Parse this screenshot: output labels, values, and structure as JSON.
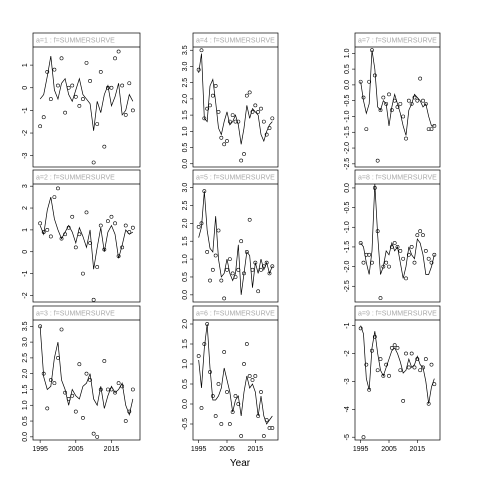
{
  "x_label": "Year",
  "chart_data": [
    {
      "type": "scatter-line",
      "strip": "a=1 : f=SUMMERSURVE",
      "x": [
        1995,
        1996,
        1997,
        1998,
        1999,
        2000,
        2001,
        2002,
        2003,
        2004,
        2005,
        2006,
        2007,
        2008,
        2009,
        2010,
        2011,
        2012,
        2013,
        2014,
        2015,
        2016,
        2017,
        2018,
        2019,
        2020,
        2021
      ],
      "xlim": [
        1993,
        2023
      ],
      "ylim": [
        -3.5,
        1.8
      ],
      "yticks": [
        -3,
        -2,
        -1,
        0,
        1
      ],
      "series": [
        {
          "color": "#000000",
          "marker": "circle",
          "values": [
            -1.7,
            -1.3,
            0.7,
            -0.5,
            0.8,
            0.1,
            1.3,
            -1.1,
            0.0,
            0.1,
            -0.4,
            -0.8,
            -0.5,
            1.1,
            0.3,
            -3.3,
            -1.6,
            0.7,
            -2.6,
            0.0,
            0.0,
            1.3,
            1.6,
            0.1,
            -1.2,
            0.2,
            -1.0
          ]
        },
        {
          "color": "#000000",
          "marker": "line",
          "values": [
            -0.5,
            -0.3,
            0.5,
            1.4,
            -0.1,
            -0.5,
            0.2,
            0.4,
            -0.3,
            -0.6,
            -0.1,
            0.4,
            -0.3,
            -0.5,
            -0.7,
            -1.9,
            -0.6,
            -1.1,
            -0.3,
            0.1,
            -0.8,
            -0.4,
            0.2,
            -1.2,
            -1.0,
            -0.3,
            -0.6
          ]
        }
      ]
    },
    {
      "type": "scatter-line",
      "strip": "a=2 : f=SUMMERSURVE",
      "x": [
        1995,
        1996,
        1997,
        1998,
        1999,
        2000,
        2001,
        2002,
        2003,
        2004,
        2005,
        2006,
        2007,
        2008,
        2009,
        2010,
        2011,
        2012,
        2013,
        2014,
        2015,
        2016,
        2017,
        2018,
        2019,
        2020,
        2021
      ],
      "xlim": [
        1993,
        2023
      ],
      "ylim": [
        -2.3,
        3.1
      ],
      "yticks": [
        -2,
        -1,
        0,
        1,
        2,
        3
      ],
      "series": [
        {
          "color": "#000000",
          "marker": "circle",
          "values": [
            1.3,
            0.9,
            1.0,
            0.7,
            2.5,
            2.9,
            0.6,
            0.8,
            1.1,
            1.6,
            0.2,
            0.8,
            -1.0,
            1.8,
            0.4,
            -2.2,
            -0.7,
            1.2,
            0.1,
            1.4,
            1.6,
            1.3,
            -0.2,
            0.2,
            1.2,
            0.9,
            1.1
          ]
        },
        {
          "color": "#000000",
          "marker": "line",
          "values": [
            1.2,
            0.8,
            1.9,
            2.5,
            1.5,
            1.0,
            0.6,
            0.9,
            1.2,
            0.9,
            0.4,
            1.1,
            0.7,
            0.2,
            1.0,
            -0.8,
            0.2,
            1.1,
            0.0,
            0.9,
            1.2,
            0.8,
            -0.3,
            0.3,
            1.0,
            0.8,
            0.9
          ]
        }
      ]
    },
    {
      "type": "scatter-line",
      "strip": "a=3 : f=SUMMERSURVE",
      "x": [
        1995,
        1996,
        1997,
        1998,
        1999,
        2000,
        2001,
        2002,
        2003,
        2004,
        2005,
        2006,
        2007,
        2008,
        2009,
        2010,
        2011,
        2012,
        2013,
        2014,
        2015,
        2016,
        2017,
        2018,
        2019,
        2020,
        2021
      ],
      "xlim": [
        1993,
        2023
      ],
      "xticks": [
        1995,
        2005,
        2015
      ],
      "ylim": [
        -0.1,
        3.7
      ],
      "yticks": [
        {
          "value": 0,
          "label": "0.0"
        },
        0.5,
        {
          "value": 1,
          "label": "1.0"
        },
        1.5,
        {
          "value": 2,
          "label": "2.0"
        },
        2.5,
        {
          "value": 3,
          "label": "3.0"
        },
        3.5
      ],
      "series": [
        {
          "color": "#000000",
          "marker": "circle",
          "values": [
            3.5,
            2.0,
            0.9,
            1.8,
            1.7,
            2.5,
            3.4,
            1.4,
            1.2,
            1.3,
            0.8,
            2.3,
            0.6,
            2.0,
            1.8,
            0.1,
            0.0,
            1.5,
            2.4,
            1.5,
            1.5,
            1.4,
            1.7,
            1.6,
            0.5,
            0.8,
            1.5
          ]
        },
        {
          "color": "#000000",
          "marker": "line",
          "values": [
            3.5,
            1.9,
            1.5,
            1.6,
            2.5,
            3.0,
            1.8,
            1.5,
            1.0,
            1.5,
            1.3,
            1.2,
            1.6,
            1.7,
            2.0,
            1.2,
            1.0,
            1.6,
            0.9,
            1.3,
            1.6,
            1.4,
            1.5,
            1.7,
            1.0,
            0.7,
            1.2
          ]
        }
      ]
    },
    {
      "type": "scatter-line",
      "strip": "a=4 : f=SUMMERSURVE",
      "x": [
        1995,
        1996,
        1997,
        1998,
        1999,
        2000,
        2001,
        2002,
        2003,
        2004,
        2005,
        2006,
        2007,
        2008,
        2009,
        2010,
        2011,
        2012,
        2013,
        2014,
        2015,
        2016,
        2017,
        2018,
        2019,
        2020,
        2021
      ],
      "xlim": [
        1993,
        2023
      ],
      "ylim": [
        -0.1,
        3.6
      ],
      "yticks": [
        {
          "value": 0,
          "label": "0.0"
        },
        0.5,
        {
          "value": 1,
          "label": "1.0"
        },
        1.5,
        {
          "value": 2,
          "label": "2.0"
        },
        2.5,
        {
          "value": 3,
          "label": "3.0"
        },
        3.5
      ],
      "series": [
        {
          "color": "#000000",
          "marker": "circle",
          "values": [
            2.9,
            3.5,
            1.4,
            1.7,
            1.8,
            2.1,
            2.4,
            1.6,
            0.8,
            0.6,
            0.7,
            1.3,
            1.5,
            1.3,
            1.3,
            0.1,
            0.3,
            2.1,
            2.2,
            1.6,
            1.8,
            1.6,
            1.7,
            1.3,
            0.9,
            1.1,
            1.4
          ]
        },
        {
          "color": "#000000",
          "marker": "line",
          "values": [
            2.8,
            3.4,
            1.4,
            1.3,
            2.4,
            2.6,
            1.9,
            1.1,
            0.9,
            1.3,
            1.6,
            1.2,
            1.3,
            1.5,
            1.2,
            0.6,
            1.1,
            1.8,
            1.4,
            1.7,
            1.6,
            1.5,
            0.9,
            0.7,
            1.0,
            1.2,
            1.3
          ]
        }
      ]
    },
    {
      "type": "scatter-line",
      "strip": "a=5 : f=SUMMERSURVE",
      "x": [
        1995,
        1996,
        1997,
        1998,
        1999,
        2000,
        2001,
        2002,
        2003,
        2004,
        2005,
        2006,
        2007,
        2008,
        2009,
        2010,
        2011,
        2012,
        2013,
        2014,
        2015,
        2016,
        2017,
        2018,
        2019,
        2020,
        2021
      ],
      "xlim": [
        1993,
        2023
      ],
      "ylim": [
        -0.2,
        3.1
      ],
      "yticks": [
        {
          "value": 0,
          "label": "0.0"
        },
        0.5,
        {
          "value": 1,
          "label": "1.0"
        },
        1.5,
        {
          "value": 2,
          "label": "2.0"
        },
        2.5,
        {
          "value": 3,
          "label": "3.0"
        }
      ],
      "series": [
        {
          "color": "#000000",
          "marker": "circle",
          "values": [
            1.9,
            2.0,
            2.9,
            1.2,
            0.4,
            0.7,
            1.1,
            1.8,
            0.4,
            -0.1,
            0.7,
            1.0,
            0.6,
            0.5,
            0.7,
            1.5,
            0.6,
            1.2,
            2.1,
            0.7,
            0.9,
            0.1,
            0.7,
            0.8,
            0.9,
            0.6,
            0.8
          ]
        },
        {
          "color": "#000000",
          "marker": "line",
          "values": [
            1.6,
            1.9,
            2.9,
            1.8,
            1.3,
            1.2,
            2.2,
            1.0,
            0.5,
            0.6,
            1.0,
            0.6,
            0.4,
            0.6,
            1.4,
            0.0,
            0.6,
            1.2,
            1.1,
            0.2,
            0.9,
            0.6,
            1.0,
            0.7,
            0.9,
            0.6,
            0.8
          ]
        }
      ]
    },
    {
      "type": "scatter-line",
      "strip": "a=6 : f=SUMMERSURVE",
      "x": [
        1995,
        1996,
        1997,
        1998,
        1999,
        2000,
        2001,
        2002,
        2003,
        2004,
        2005,
        2006,
        2007,
        2008,
        2009,
        2010,
        2011,
        2012,
        2013,
        2014,
        2015,
        2016,
        2017,
        2018,
        2019,
        2020,
        2021
      ],
      "xlim": [
        1993,
        2023
      ],
      "xticks": [
        1995,
        2005,
        2015
      ],
      "ylim": [
        -0.9,
        2.1
      ],
      "yticks": [
        -0.5,
        {
          "value": 0,
          "label": "0.0"
        },
        0.5,
        {
          "value": 1,
          "label": "1.0"
        },
        1.5,
        {
          "value": 2,
          "label": "2.0"
        }
      ],
      "series": [
        {
          "color": "#000000",
          "marker": "circle",
          "values": [
            1.2,
            -0.1,
            1.5,
            2.0,
            0.8,
            0.2,
            -0.3,
            0.5,
            -0.5,
            1.3,
            0.3,
            -0.5,
            -0.2,
            0.2,
            0.0,
            -0.8,
            1.0,
            1.5,
            0.7,
            0.6,
            0.7,
            -0.3,
            0.3,
            -0.8,
            -0.4,
            -0.6,
            -0.6
          ]
        },
        {
          "color": "#000000",
          "marker": "line",
          "values": [
            1.1,
            0.4,
            1.4,
            2.0,
            0.9,
            0.1,
            0.1,
            0.2,
            0.4,
            0.9,
            0.6,
            0.3,
            -0.2,
            0.1,
            0.2,
            -0.3,
            0.3,
            0.7,
            0.4,
            0.5,
            0.3,
            -0.3,
            0.2,
            -0.3,
            -0.5,
            -0.4,
            -0.3
          ]
        }
      ]
    },
    {
      "type": "scatter-line",
      "strip": "a=7 : f=SUMMERSURVE",
      "x": [
        1995,
        1996,
        1997,
        1998,
        1999,
        2000,
        2001,
        2002,
        2003,
        2004,
        2005,
        2006,
        2007,
        2008,
        2009,
        2010,
        2011,
        2012,
        2013,
        2014,
        2015,
        2016,
        2017,
        2018,
        2019,
        2020,
        2021
      ],
      "xlim": [
        1993,
        2023
      ],
      "ylim": [
        -2.6,
        1.2
      ],
      "yticks": [
        -2.5,
        {
          "value": -2,
          "label": "-2.0"
        },
        -1.5,
        {
          "value": -1,
          "label": "-1.0"
        },
        -0.5,
        {
          "value": 0,
          "label": "0.0"
        },
        0.5,
        {
          "value": 1,
          "label": "1.0"
        }
      ],
      "series": [
        {
          "color": "#000000",
          "marker": "circle",
          "values": [
            0.1,
            -0.4,
            -1.4,
            0.1,
            1.1,
            0.3,
            -2.4,
            -0.8,
            -0.4,
            -0.6,
            -0.3,
            -0.8,
            -0.5,
            -0.7,
            -0.6,
            -1.0,
            -1.7,
            -0.5,
            -0.6,
            -0.4,
            -0.5,
            0.2,
            -0.5,
            -0.6,
            -1.4,
            -1.4,
            -1.3
          ]
        },
        {
          "color": "#000000",
          "marker": "line",
          "values": [
            0.1,
            -0.5,
            -0.9,
            -0.6,
            1.1,
            0.5,
            -0.7,
            -0.8,
            -0.5,
            -0.6,
            -1.3,
            -0.7,
            -0.3,
            -0.6,
            -0.9,
            -1.3,
            -1.6,
            -0.8,
            -0.6,
            -0.3,
            -0.4,
            -0.5,
            -0.7,
            -0.6,
            -1.0,
            -1.3,
            -1.3
          ]
        }
      ]
    },
    {
      "type": "scatter-line",
      "strip": "a=8 : f=SUMMERSURVE",
      "x": [
        1995,
        1996,
        1997,
        1998,
        1999,
        2000,
        2001,
        2002,
        2003,
        2004,
        2005,
        2006,
        2007,
        2008,
        2009,
        2010,
        2011,
        2012,
        2013,
        2014,
        2015,
        2016,
        2017,
        2018,
        2019,
        2020,
        2021
      ],
      "xlim": [
        1993,
        2023
      ],
      "ylim": [
        -2.9,
        0.1
      ],
      "yticks": [
        -2.5,
        {
          "value": -2,
          "label": "-2.0"
        },
        -1.5,
        {
          "value": -1,
          "label": "-1.0"
        },
        -0.5,
        {
          "value": 0,
          "label": "0.0"
        }
      ],
      "series": [
        {
          "color": "#000000",
          "marker": "circle",
          "values": [
            -1.4,
            -1.9,
            -1.7,
            -1.7,
            -1.9,
            0.0,
            -1.1,
            -2.8,
            -2.0,
            -1.9,
            -2.0,
            -1.5,
            -1.4,
            -1.5,
            -1.6,
            -1.8,
            -2.3,
            -1.7,
            -1.5,
            -1.9,
            -1.2,
            -1.1,
            -1.2,
            -1.6,
            -1.8,
            -1.9,
            -1.7
          ]
        },
        {
          "color": "#000000",
          "marker": "line",
          "values": [
            -1.4,
            -1.5,
            -1.9,
            -2.2,
            -1.6,
            0.1,
            -1.2,
            -2.2,
            -2.0,
            -1.6,
            -1.7,
            -1.4,
            -1.6,
            -1.5,
            -1.9,
            -2.3,
            -2.0,
            -1.5,
            -1.7,
            -1.8,
            -1.3,
            -1.4,
            -1.7,
            -2.2,
            -2.2,
            -2.0,
            -1.7
          ]
        }
      ]
    },
    {
      "type": "scatter-line",
      "strip": "a=9 : f=SUMMERSURVE",
      "x": [
        1995,
        1996,
        1997,
        1998,
        1999,
        2000,
        2001,
        2002,
        2003,
        2004,
        2005,
        2006,
        2007,
        2008,
        2009,
        2010,
        2011,
        2012,
        2013,
        2014,
        2015,
        2016,
        2017,
        2018,
        2019,
        2020,
        2021
      ],
      "xlim": [
        1993,
        2023
      ],
      "xticks": [
        1995,
        2005,
        2015
      ],
      "ylim": [
        -5.1,
        -0.8
      ],
      "yticks": [
        -5,
        -4,
        -3,
        -2,
        -1
      ],
      "series": [
        {
          "color": "#000000",
          "marker": "circle",
          "values": [
            -1.1,
            -5.0,
            -2.4,
            -3.3,
            -1.9,
            -1.4,
            -2.6,
            -2.2,
            -2.8,
            -2.4,
            -2.8,
            -1.8,
            -1.7,
            -1.8,
            -2.6,
            -3.7,
            -2.0,
            -2.5,
            -2.0,
            -2.5,
            -2.2,
            -2.6,
            -2.5,
            -2.2,
            -3.8,
            -2.4,
            -3.1
          ]
        },
        {
          "color": "#000000",
          "marker": "line",
          "values": [
            -1.0,
            -1.3,
            -2.9,
            -3.3,
            -1.8,
            -1.2,
            -2.0,
            -2.6,
            -2.8,
            -2.5,
            -2.2,
            -1.9,
            -1.8,
            -2.0,
            -2.3,
            -2.7,
            -2.6,
            -2.2,
            -2.5,
            -2.4,
            -2.1,
            -2.4,
            -2.5,
            -3.0,
            -3.8,
            -3.2,
            -2.9
          ]
        }
      ]
    }
  ]
}
